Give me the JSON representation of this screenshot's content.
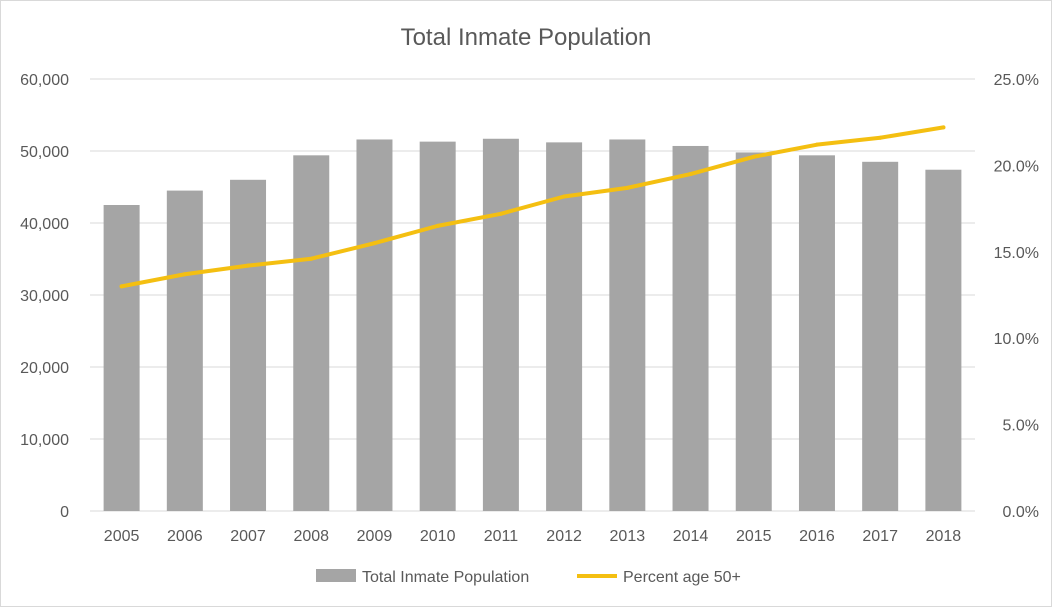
{
  "chart_data": {
    "type": "bar+line",
    "title": "Total Inmate Population",
    "categories": [
      "2005",
      "2006",
      "2007",
      "2008",
      "2009",
      "2010",
      "2011",
      "2012",
      "2013",
      "2014",
      "2015",
      "2016",
      "2017",
      "2018"
    ],
    "series": [
      {
        "name": "Total Inmate Population",
        "type": "bar",
        "axis": "left",
        "color": "#a5a5a5",
        "values": [
          42500,
          44500,
          46000,
          49400,
          51600,
          51300,
          51700,
          51200,
          51600,
          50700,
          49800,
          49400,
          48500,
          47400
        ]
      },
      {
        "name": "Percent age 50+",
        "type": "line",
        "axis": "right",
        "color": "#f4bf11",
        "values": [
          13.0,
          13.7,
          14.2,
          14.6,
          15.5,
          16.5,
          17.2,
          18.2,
          18.7,
          19.5,
          20.5,
          21.2,
          21.6,
          22.2
        ]
      }
    ],
    "y_left": {
      "min": 0,
      "max": 60000,
      "step": 10000,
      "tick_labels": [
        "0",
        "10,000",
        "20,000",
        "30,000",
        "40,000",
        "50,000",
        "60,000"
      ]
    },
    "y_right": {
      "min": 0,
      "max": 25,
      "step": 5,
      "tick_labels": [
        "0.0%",
        "5.0%",
        "10.0%",
        "15.0%",
        "20.0%",
        "25.0%"
      ]
    },
    "grid": true,
    "legend_position": "bottom"
  }
}
